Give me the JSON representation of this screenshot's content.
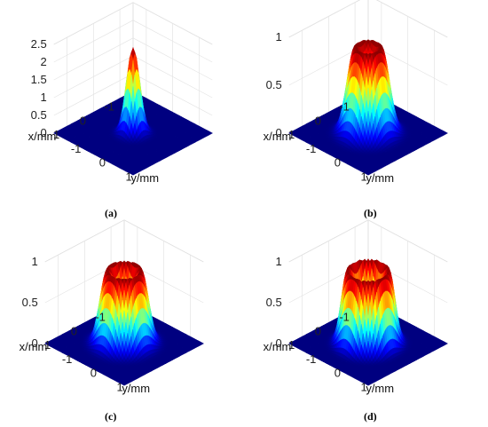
{
  "chart_data": [
    {
      "type": "surface",
      "caption": "(a)",
      "xlabel": "x/mm",
      "ylabel": "y/mm",
      "zlim": [
        0,
        2.5
      ],
      "zticks": [
        "0",
        "0.5",
        "1",
        "1.5",
        "2",
        "2.5"
      ],
      "xticks": [
        "-1",
        "0",
        "1"
      ],
      "yticks": [
        "-1",
        "0",
        "1"
      ],
      "profile": {
        "shape": "gaussian",
        "peak": 2.4,
        "ring_radius_mm": 0.0,
        "width_mm": 0.18
      },
      "colormap": "jet",
      "grid": true
    },
    {
      "type": "surface",
      "caption": "(b)",
      "xlabel": "x/mm",
      "ylabel": "y/mm",
      "zlim": [
        0,
        1
      ],
      "zticks": [
        "0",
        "0.5",
        "1"
      ],
      "xticks": [
        "-1",
        "0",
        "1"
      ],
      "yticks": [
        "-1",
        "0",
        "1"
      ],
      "profile": {
        "shape": "flat-top ring",
        "peak": 0.9,
        "ring_radius_mm": 0.35,
        "width_mm": 0.22
      },
      "colormap": "jet",
      "grid": true
    },
    {
      "type": "surface",
      "caption": "(c)",
      "xlabel": "x/mm",
      "ylabel": "y/mm",
      "zlim": [
        0,
        1
      ],
      "zticks": [
        "0",
        "0.5",
        "1"
      ],
      "xticks": [
        "-1",
        "0",
        "1"
      ],
      "yticks": [
        "-1",
        "0",
        "1"
      ],
      "profile": {
        "shape": "ring",
        "peak": 0.9,
        "ring_radius_mm": 0.45,
        "width_mm": 0.2
      },
      "colormap": "jet",
      "grid": true
    },
    {
      "type": "surface",
      "caption": "(d)",
      "xlabel": "x/mm",
      "ylabel": "y/mm",
      "zlim": [
        0,
        1
      ],
      "zticks": [
        "0",
        "0.5",
        "1"
      ],
      "xticks": [
        "-1",
        "0",
        "1"
      ],
      "yticks": [
        "-1",
        "0",
        "1"
      ],
      "profile": {
        "shape": "ring",
        "peak": 0.9,
        "ring_radius_mm": 0.55,
        "width_mm": 0.17
      },
      "colormap": "jet",
      "grid": true
    }
  ]
}
